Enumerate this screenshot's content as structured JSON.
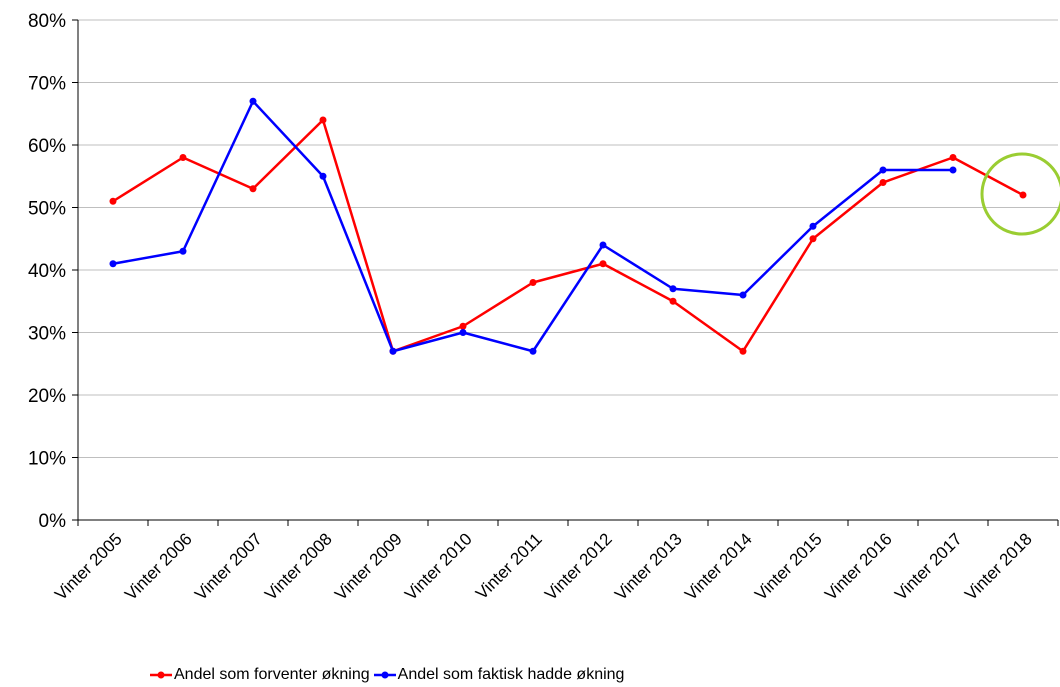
{
  "chart_data": {
    "type": "line",
    "categories": [
      "Vinter 2005",
      "Vinter 2006",
      "Vinter 2007",
      "Vinter 2008",
      "Vinter 2009",
      "Vinter 2010",
      "Vinter 2011",
      "Vinter 2012",
      "Vinter 2013",
      "Vinter 2014",
      "Vinter 2015",
      "Vinter 2016",
      "Vinter 2017",
      "Vinter 2018"
    ],
    "series": [
      {
        "name": "Andel som forventer økning",
        "color": "#ff0000",
        "values": [
          51,
          58,
          53,
          64,
          27,
          31,
          38,
          41,
          35,
          27,
          45,
          54,
          58,
          52
        ]
      },
      {
        "name": "Andel som faktisk hadde økning",
        "color": "#0000ff",
        "values": [
          41,
          43,
          67,
          55,
          27,
          30,
          27,
          44,
          37,
          36,
          47,
          56,
          56,
          null
        ]
      }
    ],
    "ylim": [
      0,
      80
    ],
    "yticks": [
      "0%",
      "10%",
      "20%",
      "30%",
      "40%",
      "50%",
      "60%",
      "70%",
      "80%"
    ],
    "grid": true,
    "legend_position": "bottom",
    "annotation": {
      "shape": "circle",
      "color": "#9acd32",
      "target": "Vinter 2018"
    }
  }
}
